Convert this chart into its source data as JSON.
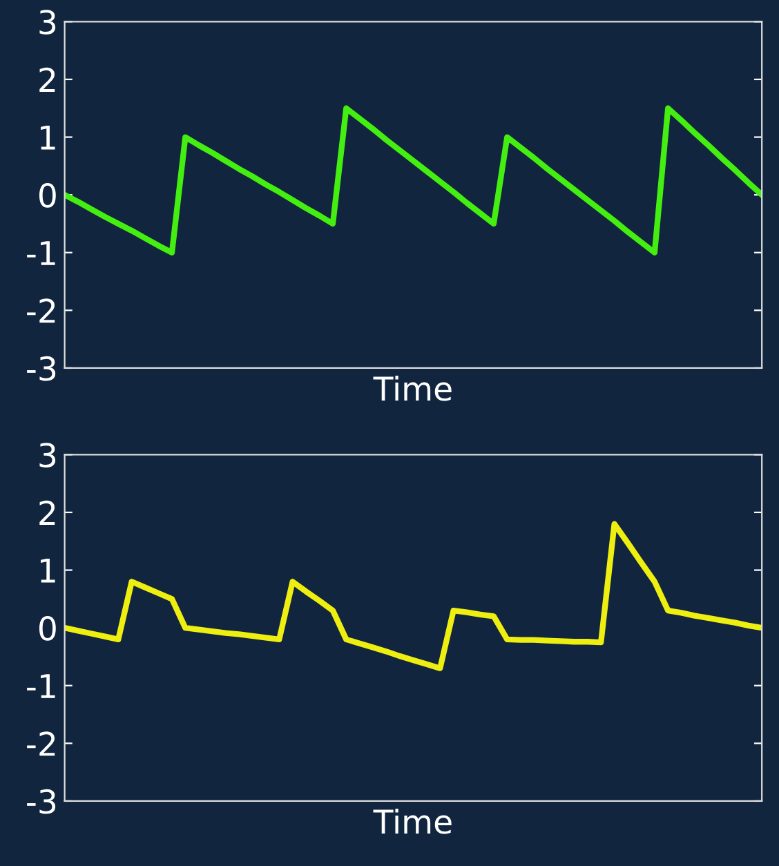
{
  "chart_data": [
    {
      "type": "line",
      "xlabel": "Time",
      "categories": [
        null,
        null,
        null,
        null,
        null,
        null,
        null,
        null,
        null,
        null,
        null,
        null,
        null,
        null,
        null,
        null,
        null,
        null,
        null,
        null,
        null,
        null,
        null,
        null,
        null,
        null,
        null,
        null,
        null,
        null,
        null,
        null,
        null,
        null,
        null,
        null,
        null,
        null,
        null,
        null,
        null,
        null,
        null,
        null,
        null,
        null,
        null,
        null,
        null,
        null,
        null,
        null,
        null
      ],
      "ylim": [
        -3,
        3
      ],
      "yticks": [
        -3,
        -2,
        -1,
        0,
        1,
        2,
        3
      ],
      "tick_labels": "y",
      "grid": false,
      "legend": false,
      "series": [
        {
          "color": "#44ee11",
          "values": [
            0,
            -0.12,
            -0.25,
            -0.38,
            -0.5,
            -0.62,
            -0.75,
            -0.88,
            -1,
            1,
            0.86,
            0.73,
            0.59,
            0.45,
            0.32,
            0.18,
            0.05,
            -0.09,
            -0.23,
            -0.36,
            -0.5,
            1.5,
            1.32,
            1.14,
            0.95,
            0.77,
            0.59,
            0.41,
            0.23,
            0.05,
            -0.14,
            -0.32,
            -0.5,
            1,
            0.82,
            0.64,
            0.45,
            0.27,
            0.09,
            -0.09,
            -0.27,
            -0.45,
            -0.64,
            -0.82,
            -1,
            1.5,
            1.29,
            1.07,
            0.86,
            0.64,
            0.43,
            0.21,
            0
          ]
        }
      ]
    },
    {
      "type": "line",
      "xlabel": "Time",
      "categories": [
        null,
        null,
        null,
        null,
        null,
        null,
        null,
        null,
        null,
        null,
        null,
        null,
        null,
        null,
        null,
        null,
        null,
        null,
        null,
        null,
        null,
        null,
        null,
        null,
        null,
        null,
        null,
        null,
        null,
        null,
        null,
        null,
        null,
        null,
        null,
        null,
        null,
        null,
        null,
        null,
        null,
        null,
        null,
        null,
        null,
        null,
        null,
        null,
        null,
        null,
        null,
        null,
        null
      ],
      "ylim": [
        -3,
        3
      ],
      "yticks": [
        -3,
        -2,
        -1,
        0,
        1,
        2,
        3
      ],
      "tick_labels": "y",
      "grid": false,
      "legend": false,
      "series": [
        {
          "color": "#eeee11",
          "values": [
            0,
            -0.05,
            -0.1,
            -0.15,
            -0.2,
            0.8,
            0.7,
            0.6,
            0.5,
            0,
            -0.03,
            -0.06,
            -0.09,
            -0.11,
            -0.14,
            -0.17,
            -0.2,
            0.8,
            0.63,
            0.47,
            0.3,
            -0.2,
            -0.27,
            -0.34,
            -0.41,
            -0.49,
            -0.56,
            -0.63,
            -0.7,
            0.3,
            0.27,
            0.23,
            0.2,
            -0.2,
            -0.21,
            -0.21,
            -0.22,
            -0.23,
            -0.24,
            -0.24,
            -0.25,
            1.8,
            1.47,
            1.13,
            0.8,
            0.3,
            0.26,
            0.21,
            0.17,
            0.13,
            0.09,
            0.04,
            0
          ]
        }
      ]
    }
  ]
}
